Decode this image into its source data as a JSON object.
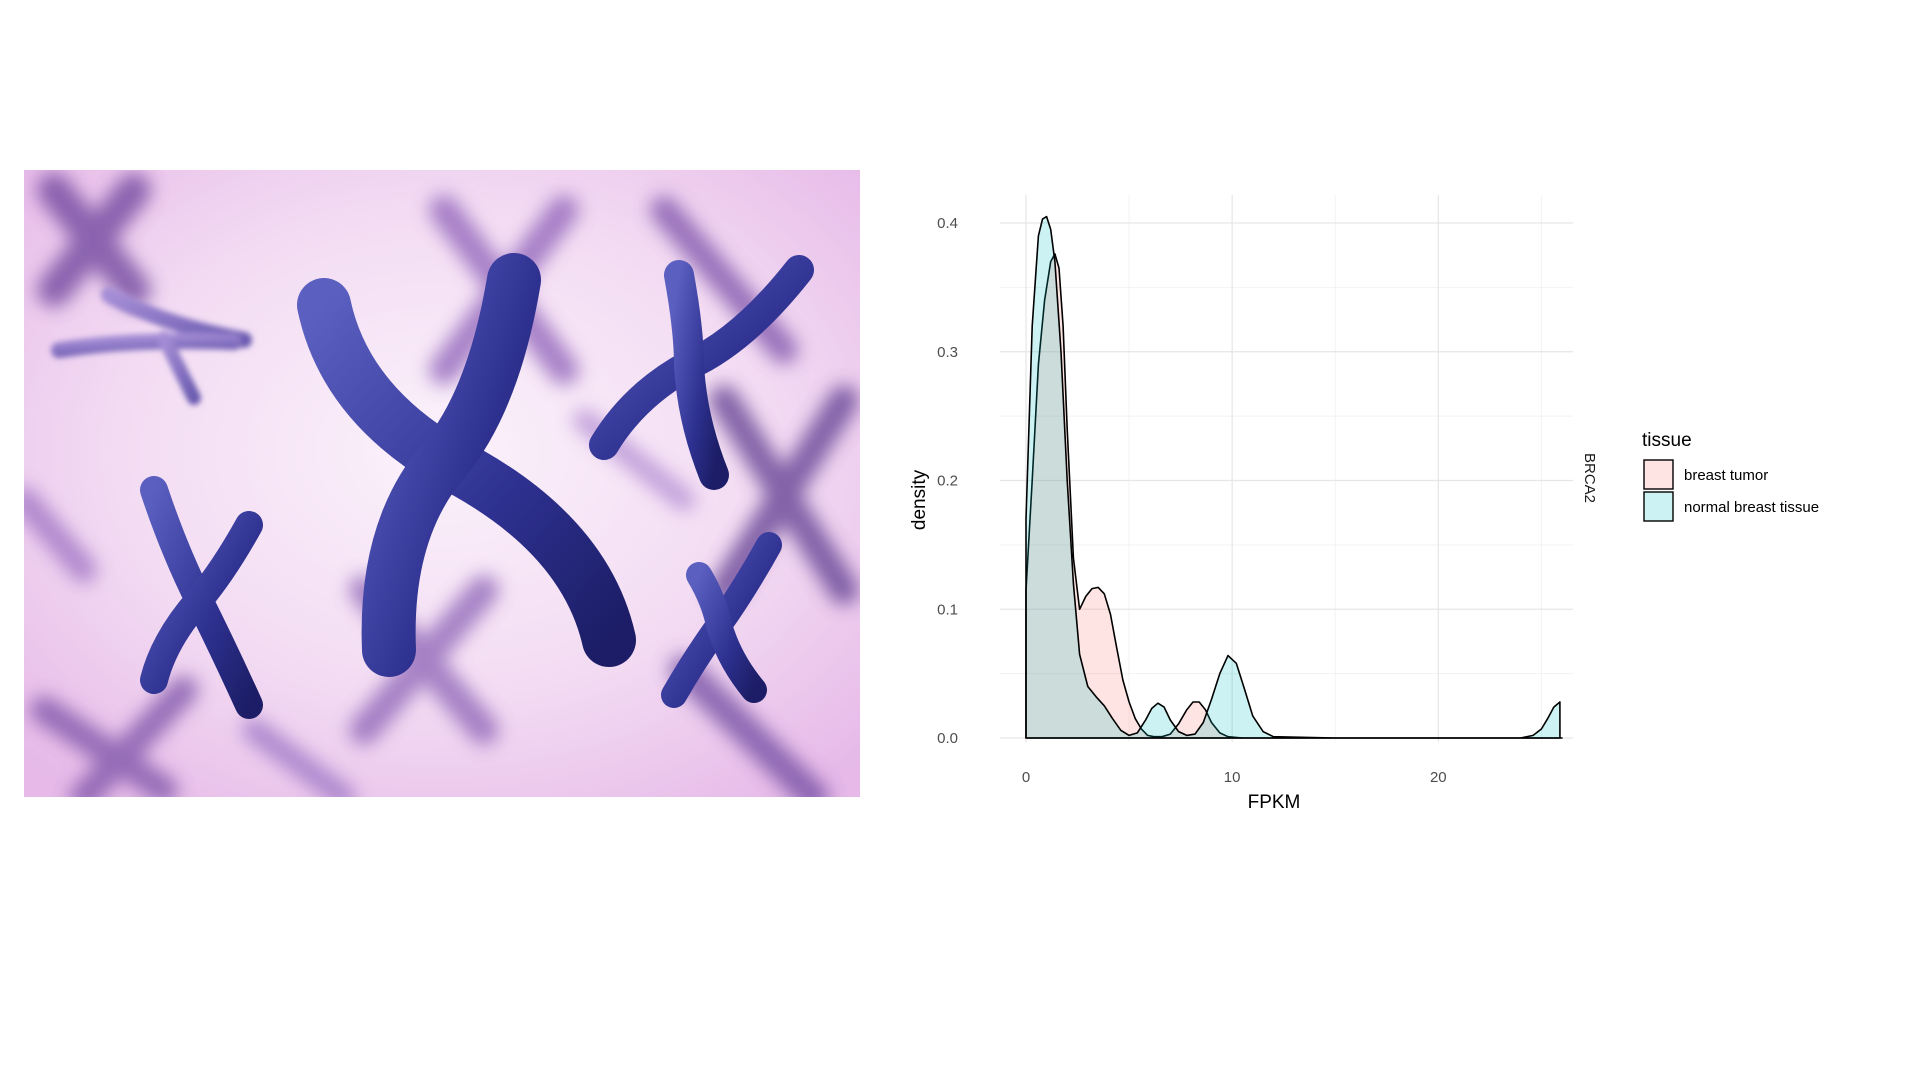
{
  "chart_data": {
    "type": "area",
    "title": "",
    "facet_label": "BRCA2",
    "xlabel": "FPKM",
    "ylabel": "density",
    "xlim": [
      0,
      27.5
    ],
    "ylim": [
      0,
      0.43
    ],
    "x_ticks": [
      0,
      10,
      20
    ],
    "y_ticks": [
      0.0,
      0.1,
      0.2,
      0.3,
      0.4
    ],
    "x_tick_labels": [
      "0",
      "10",
      "20"
    ],
    "y_tick_labels": [
      "0.0",
      "0.1",
      "0.2",
      "0.3",
      "0.4"
    ],
    "grid": true,
    "legend": {
      "title": "tissue",
      "position": "right",
      "entries": [
        "breast tumor",
        "normal breast tissue"
      ]
    },
    "series": [
      {
        "name": "breast tumor",
        "color": "#F8766D",
        "fill": "#FCE1DF",
        "x": [
          0,
          0.3,
          0.6,
          0.9,
          1.2,
          1.4,
          1.6,
          1.8,
          2.0,
          2.3,
          2.6,
          2.9,
          3.2,
          3.5,
          3.8,
          4.1,
          4.4,
          4.7,
          5.0,
          5.3,
          5.6,
          5.9,
          6.2,
          6.6,
          7.0,
          7.4,
          7.8,
          8.1,
          8.4,
          8.7,
          9.0,
          9.4,
          9.8,
          10.5,
          12,
          15,
          20,
          26
        ],
        "values": [
          0.115,
          0.2,
          0.29,
          0.34,
          0.37,
          0.376,
          0.365,
          0.32,
          0.24,
          0.14,
          0.1,
          0.11,
          0.116,
          0.117,
          0.112,
          0.096,
          0.07,
          0.045,
          0.028,
          0.015,
          0.007,
          0.002,
          0.001,
          0.001,
          0.003,
          0.011,
          0.022,
          0.028,
          0.028,
          0.022,
          0.012,
          0.004,
          0.001,
          0,
          0,
          0,
          0,
          0
        ]
      },
      {
        "name": "normal breast tissue",
        "color": "#00BFC4",
        "fill": "#C7EEEF",
        "x": [
          0,
          0.3,
          0.6,
          0.8,
          1.0,
          1.2,
          1.4,
          1.7,
          2.0,
          2.3,
          2.6,
          3.0,
          3.4,
          3.8,
          4.2,
          4.6,
          5.0,
          5.4,
          5.8,
          6.1,
          6.4,
          6.7,
          7.0,
          7.4,
          7.8,
          8.2,
          8.6,
          9.0,
          9.4,
          9.8,
          10.2,
          10.6,
          11.0,
          11.5,
          12,
          15,
          20,
          24,
          24.6,
          25,
          25.3,
          25.6,
          25.9
        ],
        "values": [
          0.17,
          0.32,
          0.39,
          0.403,
          0.405,
          0.395,
          0.37,
          0.3,
          0.2,
          0.12,
          0.065,
          0.04,
          0.032,
          0.025,
          0.015,
          0.006,
          0.002,
          0.004,
          0.014,
          0.023,
          0.027,
          0.024,
          0.014,
          0.005,
          0.002,
          0.003,
          0.012,
          0.03,
          0.05,
          0.064,
          0.058,
          0.038,
          0.017,
          0.005,
          0.001,
          0,
          0,
          0,
          0.002,
          0.007,
          0.015,
          0.024,
          0.028
        ]
      }
    ]
  }
}
